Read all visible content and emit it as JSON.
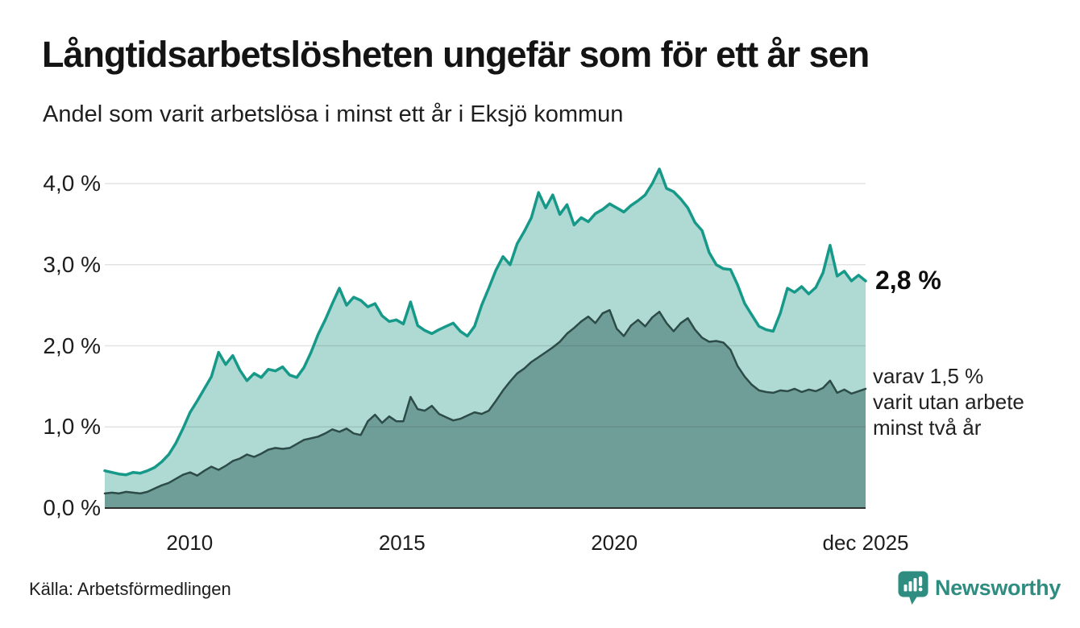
{
  "header": {
    "title": "Långtidsarbetslösheten ungefär som för ett år sen",
    "subtitle": "Andel som varit arbetslösa i minst ett år i Eksjö kommun"
  },
  "chart_data": {
    "type": "area",
    "title": "Långtidsarbetslösheten ungefär som för ett år sen",
    "subtitle": "Andel som varit arbetslösa i minst ett år i Eksjö kommun",
    "unit": "%",
    "x_start": 2008.0,
    "x_end": 2025.92,
    "ylim": [
      0,
      4.35
    ],
    "grid": true,
    "y_ticks": [
      {
        "label": "0,0 %",
        "value": 0
      },
      {
        "label": "1,0 %",
        "value": 1
      },
      {
        "label": "2,0 %",
        "value": 2
      },
      {
        "label": "3,0 %",
        "value": 3
      },
      {
        "label": "4,0 %",
        "value": 4
      }
    ],
    "x_ticks": [
      {
        "label": "2010",
        "x": 2010
      },
      {
        "label": "2015",
        "x": 2015
      },
      {
        "label": "2020",
        "x": 2020
      },
      {
        "label": "dec 2025",
        "x": 2025.92
      }
    ],
    "series": [
      {
        "name": "arbetslösa minst ett år",
        "line_color": "#17998a",
        "fill_color": "#aedad3",
        "line_width": 3.5,
        "end_value": 2.8,
        "values": [
          0.46,
          0.44,
          0.42,
          0.41,
          0.44,
          0.43,
          0.46,
          0.5,
          0.57,
          0.66,
          0.8,
          0.98,
          1.18,
          1.32,
          1.47,
          1.62,
          1.92,
          1.77,
          1.88,
          1.7,
          1.57,
          1.66,
          1.61,
          1.71,
          1.69,
          1.74,
          1.64,
          1.61,
          1.73,
          1.92,
          2.14,
          2.32,
          2.52,
          2.71,
          2.5,
          2.6,
          2.56,
          2.48,
          2.52,
          2.37,
          2.3,
          2.32,
          2.27,
          2.54,
          2.25,
          2.19,
          2.15,
          2.2,
          2.24,
          2.28,
          2.18,
          2.12,
          2.24,
          2.5,
          2.71,
          2.93,
          3.1,
          3.0,
          3.26,
          3.41,
          3.58,
          3.89,
          3.7,
          3.86,
          3.62,
          3.74,
          3.49,
          3.58,
          3.53,
          3.63,
          3.68,
          3.75,
          3.7,
          3.65,
          3.73,
          3.79,
          3.86,
          4.0,
          4.18,
          3.94,
          3.9,
          3.81,
          3.7,
          3.52,
          3.42,
          3.15,
          3.0,
          2.95,
          2.94,
          2.75,
          2.52,
          2.38,
          2.24,
          2.2,
          2.18,
          2.4,
          2.71,
          2.66,
          2.73,
          2.64,
          2.72,
          2.9,
          3.24,
          2.86,
          2.92,
          2.8,
          2.87,
          2.8
        ]
      },
      {
        "name": "varav utan arbete minst två år",
        "line_color": "#2d4b47",
        "fill_color": "#6f9e99",
        "line_width": 2.5,
        "end_value": 1.5,
        "values": [
          0.18,
          0.19,
          0.18,
          0.2,
          0.19,
          0.18,
          0.2,
          0.24,
          0.28,
          0.31,
          0.36,
          0.41,
          0.44,
          0.4,
          0.46,
          0.51,
          0.47,
          0.52,
          0.58,
          0.61,
          0.66,
          0.63,
          0.67,
          0.72,
          0.74,
          0.73,
          0.74,
          0.79,
          0.84,
          0.86,
          0.88,
          0.92,
          0.97,
          0.94,
          0.98,
          0.92,
          0.9,
          1.07,
          1.15,
          1.05,
          1.13,
          1.07,
          1.07,
          1.37,
          1.22,
          1.2,
          1.26,
          1.16,
          1.12,
          1.08,
          1.1,
          1.14,
          1.18,
          1.16,
          1.2,
          1.32,
          1.45,
          1.56,
          1.66,
          1.72,
          1.8,
          1.86,
          1.92,
          1.98,
          2.05,
          2.15,
          2.22,
          2.3,
          2.36,
          2.28,
          2.4,
          2.44,
          2.21,
          2.12,
          2.25,
          2.32,
          2.24,
          2.35,
          2.42,
          2.28,
          2.18,
          2.28,
          2.34,
          2.2,
          2.1,
          2.05,
          2.06,
          2.04,
          1.95,
          1.75,
          1.62,
          1.52,
          1.45,
          1.43,
          1.42,
          1.45,
          1.44,
          1.47,
          1.43,
          1.46,
          1.44,
          1.48,
          1.57,
          1.42,
          1.46,
          1.41,
          1.44,
          1.47
        ]
      }
    ],
    "annotations": {
      "end_value_label": "2,8 %",
      "secondary_lines": [
        "varav 1,5 %",
        "varit utan arbete",
        "minst två år"
      ]
    },
    "colors": {
      "grid": "#e2e2e2",
      "baseline": "#2f2f2f",
      "accent_teal": "#17998a",
      "brand_teal": "#2e8d80"
    }
  },
  "footer": {
    "source": "Källa: Arbetsförmedlingen",
    "brand": "Newsworthy"
  }
}
